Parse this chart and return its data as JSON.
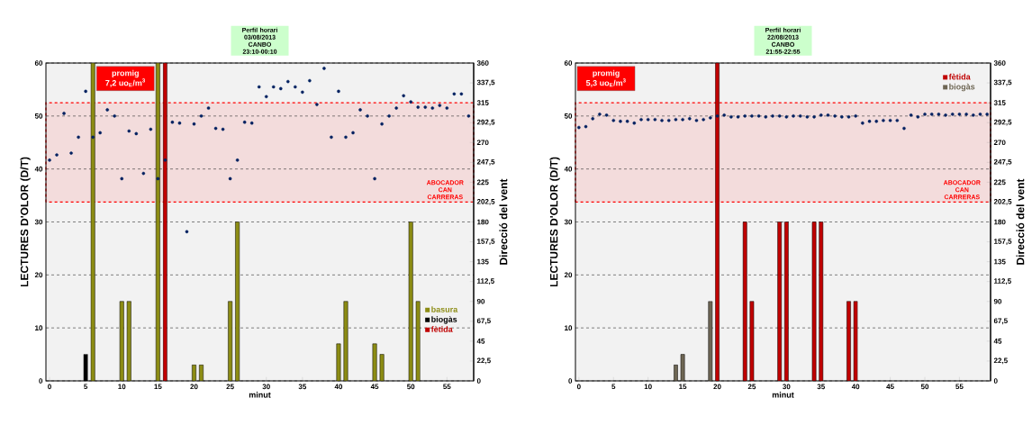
{
  "chart_data": [
    {
      "type": "bar",
      "title": "Perfil horari 03/08/2013 CANBO 23:10-00:10",
      "xlabel": "minut",
      "ylabel": "LECTURES  D'OLOR (D/T)",
      "y2label": "Direcció del vent",
      "annotations": [
        "promig",
        "7,2 uo$_{E}$/m$^{3}$"
      ],
      "xlim": [
        -0.5,
        58.7
      ],
      "xticks": [
        0,
        5,
        10,
        15,
        20,
        25,
        30,
        35,
        40,
        45,
        50,
        55
      ],
      "ylim": [
        0,
        60
      ],
      "yticks": [
        0,
        10,
        20,
        30,
        40,
        50,
        60
      ],
      "y2lim": [
        0,
        360
      ],
      "y2ticks": [
        0,
        {
          "value": 22.5,
          "label": "22,5"
        },
        45,
        {
          "value": 67.5,
          "label": "67,5"
        },
        90,
        {
          "value": 112.5,
          "label": "112,5"
        },
        135,
        {
          "value": 157.5,
          "label": "157,5"
        },
        180,
        {
          "value": 202.5,
          "label": "202,5"
        },
        225,
        {
          "value": 247.5,
          "label": "247,5"
        },
        270,
        {
          "value": 292.5,
          "label": "292,5"
        },
        315,
        {
          "value": 337.5,
          "label": "337,5"
        },
        360
      ],
      "grid": "y",
      "legend": "bottom right",
      "marker": "circle",
      "bands": [
        {
          "axis": "y2",
          "from": 202.5,
          "to": 315,
          "label": "ABOCADOR CAN CARRERAS",
          "color": "#ff0000"
        }
      ],
      "series": [
        {
          "name": "basura",
          "color": "#8c8c14",
          "x": [
            6,
            10,
            11,
            15,
            20,
            21,
            25,
            26,
            40,
            41,
            45,
            46,
            50,
            51
          ],
          "values": [
            60,
            15,
            15,
            60,
            3,
            3,
            15,
            30,
            7,
            15,
            7,
            5,
            30,
            15
          ]
        },
        {
          "name": "biogàs",
          "color": "#000000",
          "x": [
            5
          ],
          "values": [
            5
          ]
        },
        {
          "name": "fètida",
          "color": "#c00000",
          "x": [
            16
          ],
          "values": [
            60
          ]
        },
        {
          "type": "scatter",
          "axis": "y2",
          "color": "#002060",
          "x": [
            0,
            1,
            2,
            3,
            4,
            5,
            6,
            7,
            8,
            9,
            10,
            11,
            12,
            13,
            14,
            15,
            16,
            17,
            18,
            19,
            20,
            21,
            22,
            23,
            24,
            25,
            26,
            27,
            28,
            29,
            30,
            31,
            32,
            33,
            34,
            35,
            36,
            37,
            38,
            39,
            40,
            41,
            42,
            43,
            44,
            45,
            46,
            47,
            48,
            49,
            50,
            51,
            52,
            53,
            54,
            55,
            56,
            57,
            58
          ],
          "values": [
            250,
            256,
            303,
            258,
            276,
            328,
            276,
            281,
            307,
            300,
            229,
            283,
            280,
            235,
            285,
            229,
            250,
            293,
            292,
            169,
            291,
            300,
            309,
            286,
            285,
            229,
            250,
            293,
            292,
            333,
            322,
            333,
            331,
            339,
            333,
            327,
            340,
            313,
            354,
            276,
            328,
            276,
            281,
            307,
            300,
            229,
            291,
            300,
            309,
            323,
            316,
            310,
            310,
            309,
            312,
            309,
            325,
            325,
            300
          ]
        }
      ]
    },
    {
      "type": "bar",
      "title": "Perfil horari 22/08/2013 CANBO 21:55-22:55",
      "xlabel": "minut",
      "ylabel": "LECTURES  D'OLOR (D/T)",
      "y2label": "Direcció del vent",
      "annotations": [
        "promig",
        "5,3 uo$_{E}$/m$^{3}$"
      ],
      "xlim": [
        -0.5,
        59.5
      ],
      "xticks": [
        0,
        5,
        10,
        15,
        20,
        25,
        30,
        35,
        40,
        45,
        50,
        55
      ],
      "ylim": [
        0,
        60
      ],
      "yticks": [
        0,
        10,
        20,
        30,
        40,
        50,
        60
      ],
      "y2lim": [
        0,
        360
      ],
      "y2ticks": [
        0,
        {
          "value": 22.5,
          "label": "22,5"
        },
        45,
        {
          "value": 67.5,
          "label": "67,5"
        },
        90,
        {
          "value": 112.5,
          "label": "112,5"
        },
        135,
        {
          "value": 157.5,
          "label": "157,5"
        },
        180,
        {
          "value": 202.5,
          "label": "202,5"
        },
        225,
        {
          "value": 247.5,
          "label": "247,5"
        },
        270,
        {
          "value": 292.5,
          "label": "292,5"
        },
        315,
        {
          "value": 337.5,
          "label": "337,5"
        },
        360
      ],
      "grid": "y",
      "legend": "top right",
      "marker": "circle",
      "bands": [
        {
          "axis": "y2",
          "from": 202.5,
          "to": 315,
          "label": "ABOCADOR CAN CARRERAS",
          "color": "#ff0000"
        }
      ],
      "series": [
        {
          "name": "fètida",
          "color": "#c00000",
          "x": [
            20,
            24,
            25,
            29,
            30,
            34,
            35,
            39,
            40
          ],
          "values": [
            60,
            30,
            15,
            30,
            30,
            30,
            30,
            15,
            15
          ]
        },
        {
          "name": "biogàs",
          "color": "#6e6654",
          "x": [
            14,
            15,
            19
          ],
          "values": [
            3,
            5,
            15
          ]
        },
        {
          "type": "scatter",
          "axis": "y2",
          "color": "#002060",
          "x": [
            0,
            1,
            2,
            3,
            4,
            5,
            6,
            7,
            8,
            9,
            10,
            11,
            12,
            13,
            14,
            15,
            16,
            17,
            18,
            19,
            20,
            21,
            22,
            23,
            24,
            25,
            26,
            27,
            28,
            29,
            30,
            31,
            32,
            33,
            34,
            35,
            36,
            37,
            38,
            39,
            40,
            41,
            42,
            43,
            44,
            45,
            46,
            47,
            48,
            49,
            50,
            51,
            52,
            53,
            54,
            55,
            56,
            57,
            58,
            59
          ],
          "values": [
            287,
            288,
            297,
            302,
            301,
            295,
            294,
            294,
            292,
            296,
            296,
            296,
            295,
            295,
            296,
            296,
            297,
            295,
            296,
            298,
            300,
            301,
            299,
            299,
            300,
            300,
            300,
            299,
            300,
            300,
            299,
            300,
            300,
            299,
            299,
            301,
            301,
            300,
            299,
            299,
            300,
            292,
            294,
            294,
            295,
            295,
            295,
            286,
            301,
            299,
            302,
            302,
            302,
            301,
            302,
            302,
            302,
            301,
            302,
            302
          ]
        }
      ]
    }
  ]
}
